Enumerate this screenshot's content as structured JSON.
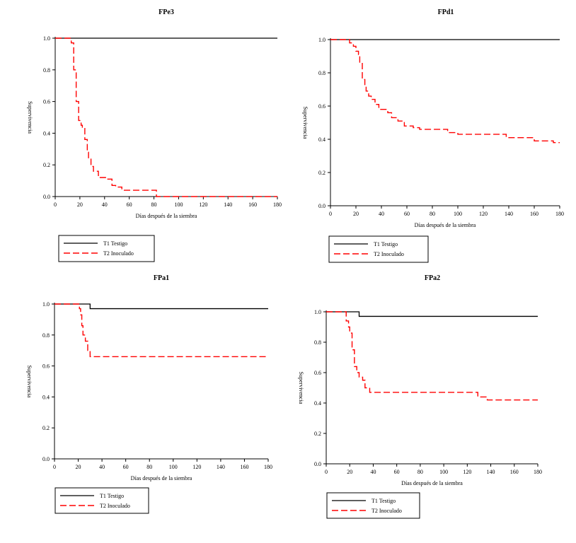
{
  "colors": {
    "t1": "#000000",
    "t2": "#ff0000",
    "axis": "#000000"
  },
  "chart_data": [
    {
      "type": "line",
      "step": true,
      "title": "FPe3",
      "xlabel": "Días después de la siembra",
      "ylabel": "Supervivencia",
      "xlim": [
        0,
        180
      ],
      "ylim": [
        0,
        1
      ],
      "xticks": [
        0,
        20,
        40,
        60,
        80,
        100,
        120,
        140,
        160,
        180
      ],
      "yticks": [
        0,
        0.2,
        0.4,
        0.6,
        0.8,
        1
      ],
      "xtick_labels": [
        "0",
        "20",
        "40",
        "60",
        "80",
        "100",
        "120",
        "140",
        "160",
        "180"
      ],
      "ytick_labels": [
        "0.0",
        "0.2",
        "0.4",
        "0.6",
        "0.8",
        "1.0"
      ],
      "legend": [
        "T1 Testigo",
        "T2 Inoculado"
      ],
      "series": [
        {
          "name": "T1 Testigo",
          "x": [
            0,
            180
          ],
          "y": [
            1,
            1
          ]
        },
        {
          "name": "T2 Inoculado",
          "x": [
            0,
            13,
            15,
            17,
            19,
            20,
            21,
            22,
            24,
            26,
            27,
            29,
            31,
            35,
            42,
            46,
            49,
            54,
            82,
            180
          ],
          "y": [
            1,
            0.97,
            0.8,
            0.6,
            0.48,
            0.47,
            0.45,
            0.43,
            0.36,
            0.28,
            0.24,
            0.19,
            0.16,
            0.12,
            0.11,
            0.07,
            0.06,
            0.04,
            0.0,
            0.0
          ]
        }
      ]
    },
    {
      "type": "line",
      "step": true,
      "title": "FPd1",
      "xlabel": "Días después de la siembra",
      "ylabel": "Supervivencia",
      "xlim": [
        0,
        180
      ],
      "ylim": [
        0,
        1
      ],
      "xticks": [
        0,
        20,
        40,
        60,
        80,
        100,
        120,
        140,
        160,
        180
      ],
      "yticks": [
        0,
        0.2,
        0.4,
        0.6,
        0.8,
        1
      ],
      "xtick_labels": [
        "0",
        "20",
        "40",
        "60",
        "80",
        "100",
        "120",
        "140",
        "160",
        "180"
      ],
      "ytick_labels": [
        "0.0",
        "0.2",
        "0.4",
        "0.6",
        "0.8",
        "1.0"
      ],
      "legend": [
        "T1 Testigo",
        "T2 Inoculado"
      ],
      "series": [
        {
          "name": "T1 Testigo",
          "x": [
            0,
            180
          ],
          "y": [
            1,
            1
          ]
        },
        {
          "name": "T2 Inoculado",
          "x": [
            0,
            15,
            18,
            20,
            22,
            23,
            25,
            27,
            28,
            30,
            32,
            35,
            38,
            45,
            48,
            53,
            58,
            65,
            70,
            92,
            95,
            100,
            138,
            160,
            175,
            180
          ],
          "y": [
            1,
            0.98,
            0.96,
            0.93,
            0.91,
            0.86,
            0.76,
            0.72,
            0.69,
            0.66,
            0.64,
            0.61,
            0.58,
            0.56,
            0.53,
            0.51,
            0.48,
            0.47,
            0.46,
            0.44,
            0.44,
            0.43,
            0.41,
            0.39,
            0.38,
            0.38
          ]
        }
      ]
    },
    {
      "type": "line",
      "step": true,
      "title": "FPa1",
      "xlabel": "Días después de la siembra",
      "ylabel": "Supervivencia",
      "xlim": [
        0,
        180
      ],
      "ylim": [
        0,
        1
      ],
      "xticks": [
        0,
        20,
        40,
        60,
        80,
        100,
        120,
        140,
        160,
        180
      ],
      "yticks": [
        0,
        0.2,
        0.4,
        0.6,
        0.8,
        1
      ],
      "xtick_labels": [
        "0",
        "20",
        "40",
        "60",
        "80",
        "100",
        "120",
        "140",
        "160",
        "180"
      ],
      "ytick_labels": [
        "0.0",
        "0.2",
        "0.4",
        "0.6",
        "0.8",
        "1.0"
      ],
      "legend": [
        "T1 Testigo",
        "T2 Inoculado"
      ],
      "series": [
        {
          "name": "T1 Testigo",
          "x": [
            0,
            30,
            180
          ],
          "y": [
            1,
            0.97,
            0.97
          ]
        },
        {
          "name": "T2 Inoculado",
          "x": [
            0,
            21,
            22,
            23,
            24,
            26,
            28,
            30,
            180
          ],
          "y": [
            1,
            0.97,
            0.93,
            0.86,
            0.8,
            0.76,
            0.7,
            0.66,
            0.66
          ]
        }
      ]
    },
    {
      "type": "line",
      "step": true,
      "title": "FPa2",
      "xlabel": "Días después de la siembra",
      "ylabel": "Supervivencia",
      "xlim": [
        0,
        180
      ],
      "ylim": [
        0,
        1
      ],
      "xticks": [
        0,
        20,
        40,
        60,
        80,
        100,
        120,
        140,
        160,
        180
      ],
      "yticks": [
        0,
        0.2,
        0.4,
        0.6,
        0.8,
        1
      ],
      "xtick_labels": [
        "0",
        "20",
        "40",
        "60",
        "80",
        "100",
        "120",
        "140",
        "160",
        "180"
      ],
      "ytick_labels": [
        "0.0",
        "0.2",
        "0.4",
        "0.6",
        "0.8",
        "1.0"
      ],
      "legend": [
        "T1 Testigo",
        "T2 Inoculado"
      ],
      "series": [
        {
          "name": "T1 Testigo",
          "x": [
            0,
            28,
            180
          ],
          "y": [
            1,
            0.97,
            0.97
          ]
        },
        {
          "name": "T2 Inoculado",
          "x": [
            0,
            17,
            19,
            20,
            22,
            24,
            26,
            28,
            31,
            33,
            37,
            129,
            137,
            180
          ],
          "y": [
            1,
            0.94,
            0.9,
            0.86,
            0.75,
            0.64,
            0.6,
            0.57,
            0.55,
            0.5,
            0.47,
            0.44,
            0.42,
            0.42
          ]
        }
      ]
    }
  ]
}
